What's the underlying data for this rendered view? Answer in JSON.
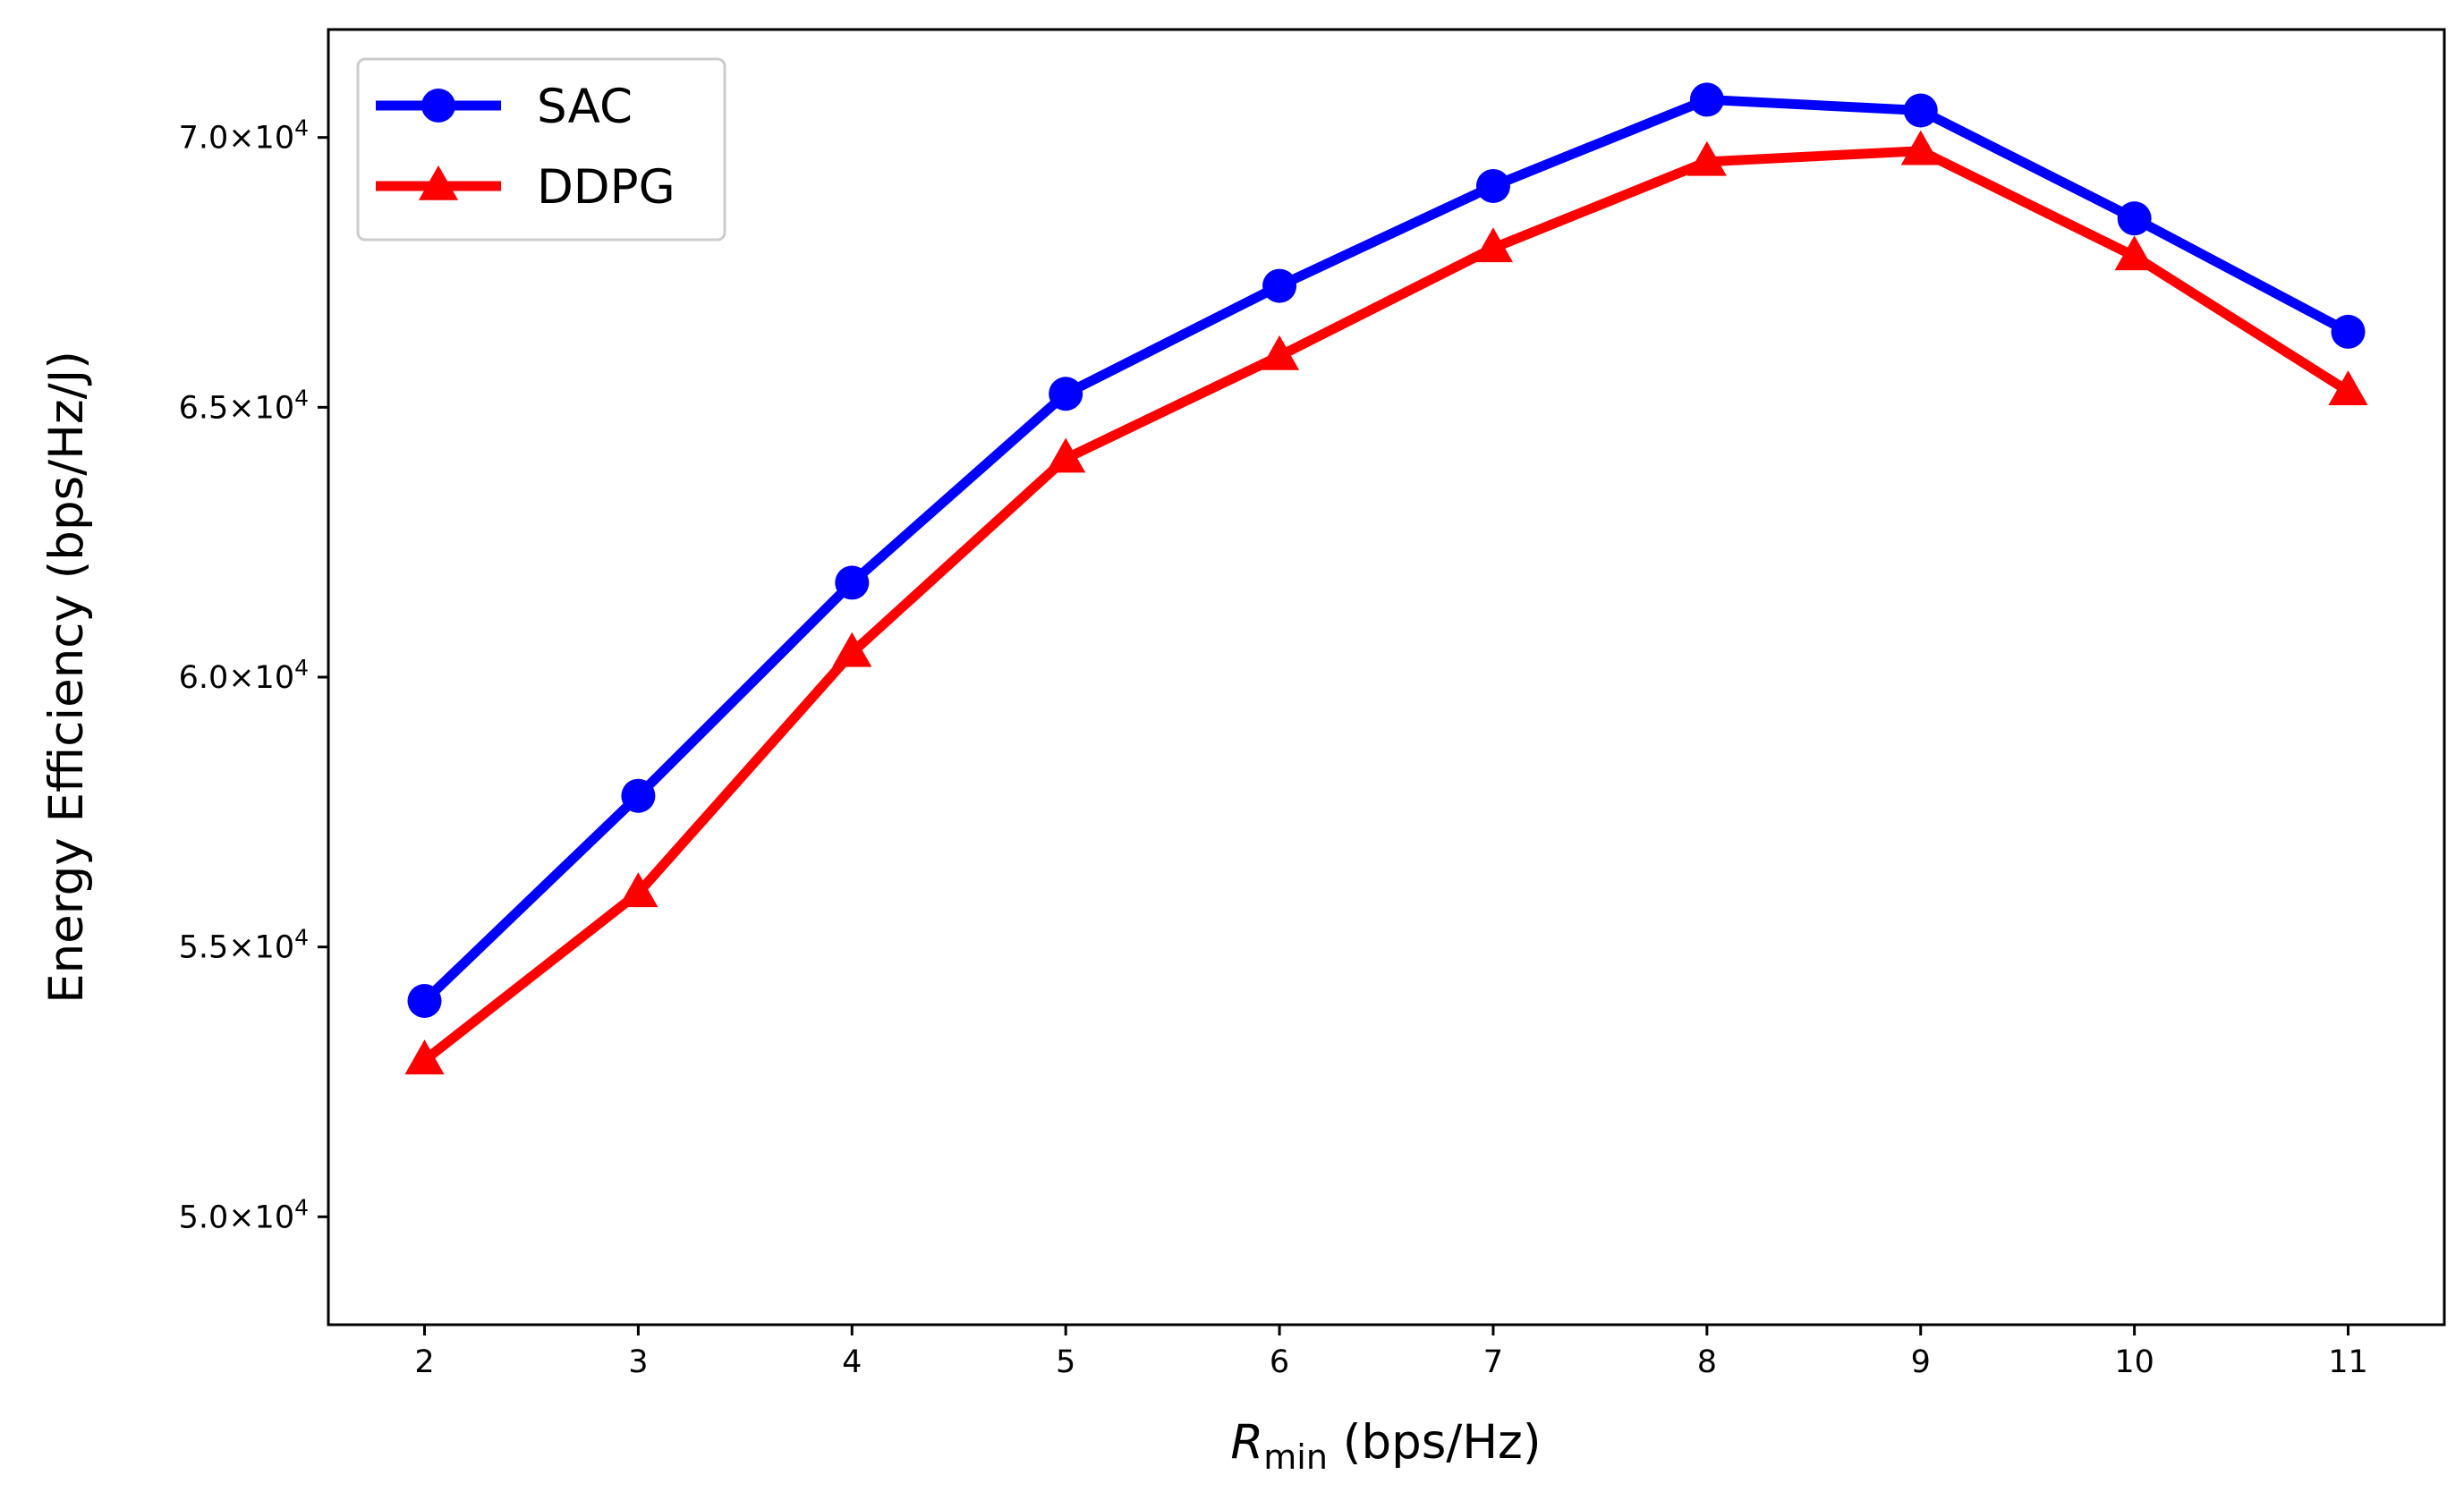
{
  "chart_data": {
    "type": "line",
    "title": "",
    "xlabel_prefix": "R",
    "xlabel_subscript": "min",
    "xlabel_suffix": " (bps/Hz)",
    "ylabel": "Energy Efficiency (bps/Hz/J)",
    "x": [
      2,
      3,
      4,
      5,
      6,
      7,
      8,
      9,
      10,
      11
    ],
    "xlim": [
      1.55,
      11.45
    ],
    "ylim": [
      48000,
      72000
    ],
    "yticks": [
      {
        "value": 50000,
        "mantissa": "5.0",
        "base": "×10",
        "exp": "4"
      },
      {
        "value": 55000,
        "mantissa": "5.5",
        "base": "×10",
        "exp": "4"
      },
      {
        "value": 60000,
        "mantissa": "6.0",
        "base": "×10",
        "exp": "4"
      },
      {
        "value": 65000,
        "mantissa": "6.5",
        "base": "×10",
        "exp": "4"
      },
      {
        "value": 70000,
        "mantissa": "7.0",
        "base": "×10",
        "exp": "4"
      }
    ],
    "legend_position": "upper-left",
    "grid": false,
    "series": [
      {
        "name": "SAC",
        "color": "#0000ff",
        "marker": "circle",
        "values": [
          54000,
          57800,
          61750,
          65250,
          67250,
          69100,
          70700,
          70500,
          68500,
          66400
        ]
      },
      {
        "name": "DDPG",
        "color": "#ff0000",
        "marker": "triangle",
        "values": [
          52900,
          56000,
          60450,
          64050,
          65950,
          67950,
          69550,
          69750,
          67800,
          65300
        ]
      }
    ]
  }
}
